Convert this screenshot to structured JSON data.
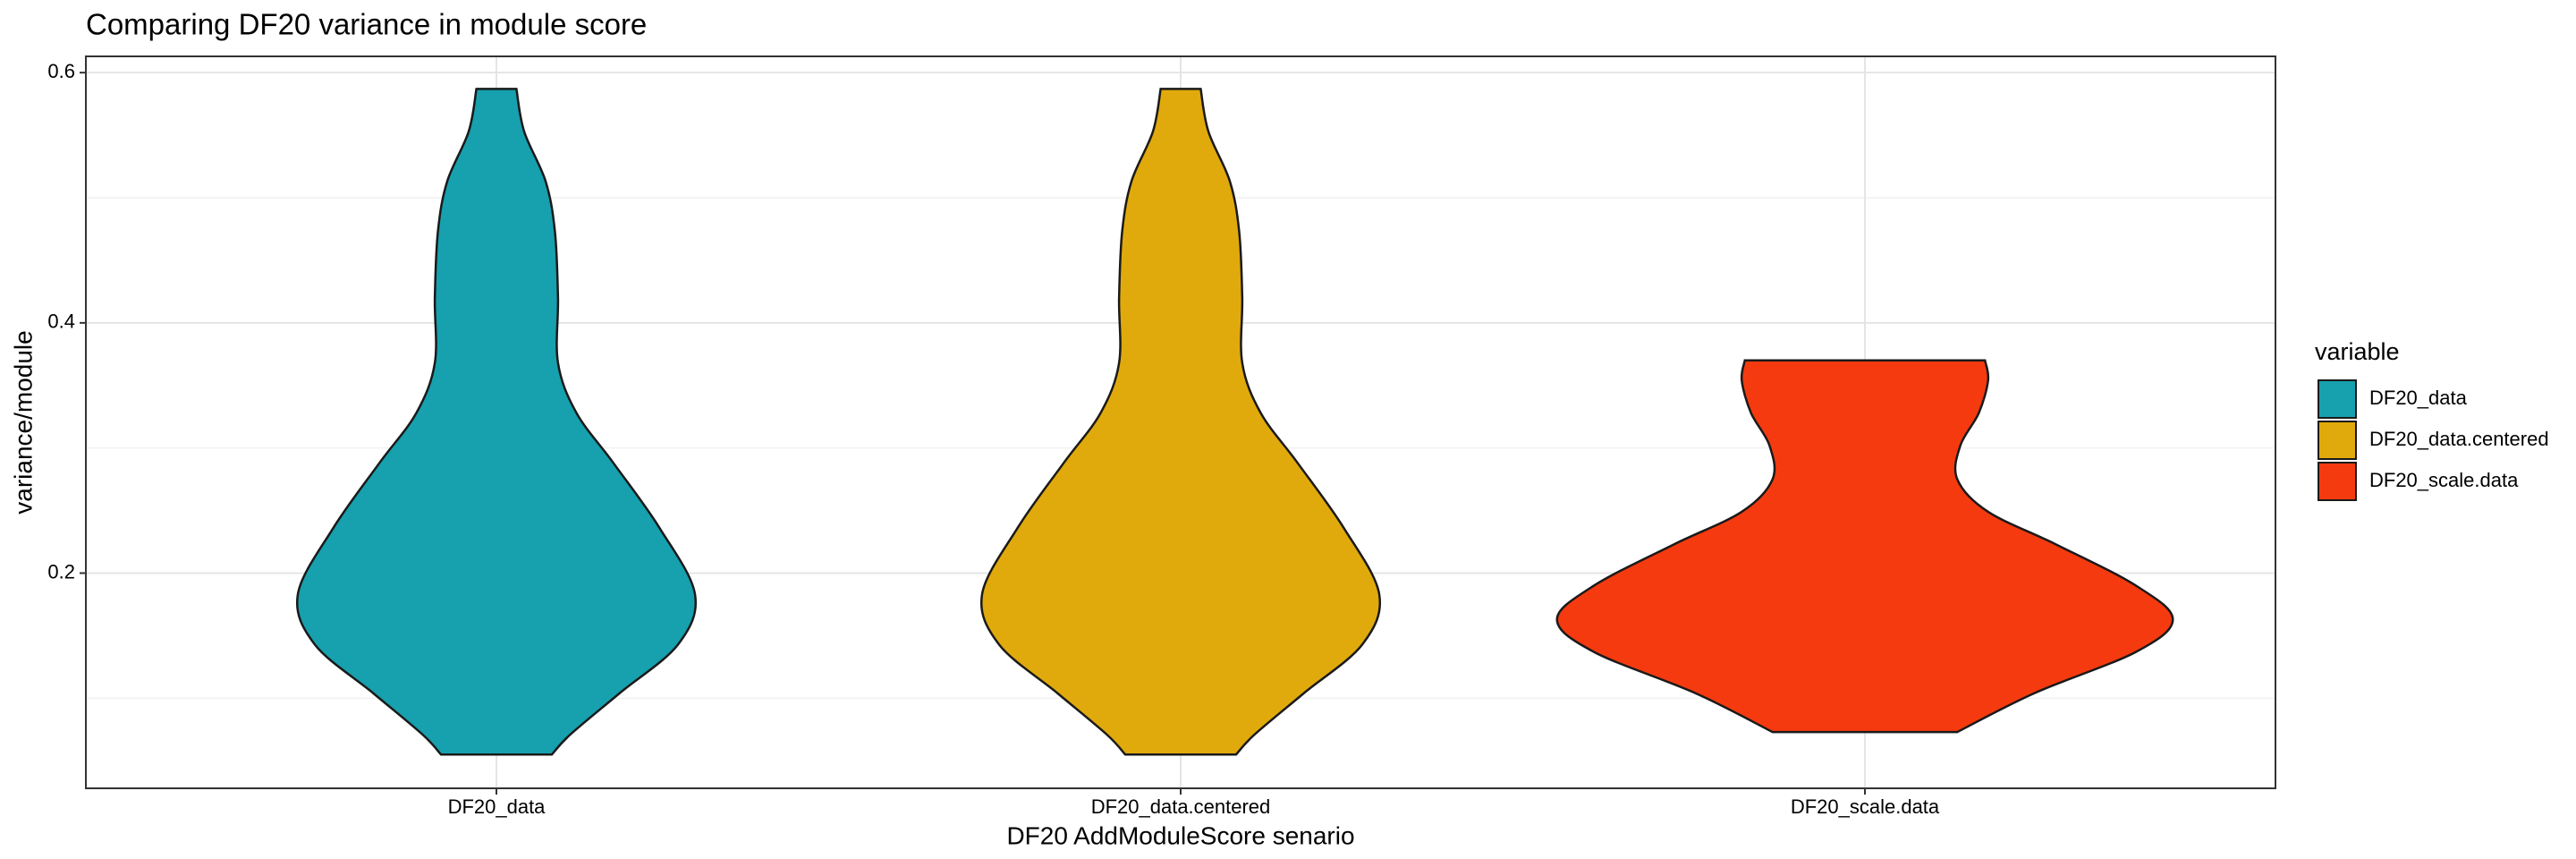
{
  "chart_data": {
    "type": "violin",
    "title": "Comparing DF20 variance in module score",
    "xlabel": "DF20 AddModuleScore senario",
    "ylabel": "variance/module",
    "categories": [
      "DF20_data",
      "DF20_data.centered",
      "DF20_scale.data"
    ],
    "series": [
      {
        "name": "DF20_data",
        "color": "#17A0AE",
        "profile_y": [
          0.587,
          0.553,
          0.513,
          0.473,
          0.42,
          0.368,
          0.328,
          0.288,
          0.236,
          0.183,
          0.143,
          0.104,
          0.071,
          0.055
        ],
        "profile_width": [
          0.065,
          0.09,
          0.16,
          0.19,
          0.2,
          0.2,
          0.26,
          0.38,
          0.53,
          0.645,
          0.59,
          0.4,
          0.24,
          0.18
        ]
      },
      {
        "name": "DF20_data.centered",
        "color": "#E0AA0C",
        "profile_y": [
          0.587,
          0.553,
          0.513,
          0.473,
          0.42,
          0.368,
          0.328,
          0.288,
          0.236,
          0.183,
          0.143,
          0.104,
          0.071,
          0.055
        ],
        "profile_width": [
          0.065,
          0.09,
          0.16,
          0.19,
          0.2,
          0.2,
          0.26,
          0.38,
          0.53,
          0.645,
          0.59,
          0.4,
          0.24,
          0.18
        ]
      },
      {
        "name": "DF20_scale.data",
        "color": "#F53A10",
        "profile_y": [
          0.37,
          0.354,
          0.328,
          0.302,
          0.275,
          0.249,
          0.223,
          0.19,
          0.163,
          0.137,
          0.104,
          0.073
        ],
        "profile_width": [
          0.39,
          0.4,
          0.37,
          0.31,
          0.3,
          0.4,
          0.62,
          0.88,
          1.0,
          0.88,
          0.55,
          0.3
        ]
      }
    ],
    "ylim": [
      0.028,
      0.613
    ],
    "yticks": [
      0.2,
      0.4,
      0.6
    ],
    "minor_yticks": [
      0.1,
      0.3,
      0.5
    ],
    "grid": true,
    "legend": {
      "title": "variable",
      "position": "right"
    }
  }
}
